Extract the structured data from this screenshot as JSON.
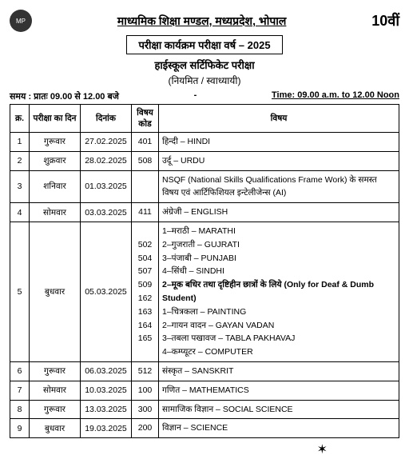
{
  "header": {
    "org": "माध्यमिक शिक्षा मण्डल, मध्यप्रदेश, भोपाल",
    "class": "10वीं",
    "program": "परीक्षा कार्यक्रम परीक्षा वर्ष – 2025",
    "exam": "हाईस्कूल सर्टिफिकेट परीक्षा",
    "mode": "(नियमित / स्वाध्यायी)",
    "time_hi": "समय : प्रातः 09.00 से 12.00 बजे",
    "time_dash": "-",
    "time_en": "Time: 09.00 a.m. to 12.00 Noon"
  },
  "columns": {
    "srno": "क्र.",
    "day": "परीक्षा का दिन",
    "date": "दिनांक",
    "code": "विषय कोड",
    "subject": "विषय"
  },
  "rows": [
    {
      "n": "1",
      "day": "गुरूवार",
      "date": "27.02.2025",
      "codes": [
        "401"
      ],
      "subjects": [
        "हिन्दी – HINDI"
      ]
    },
    {
      "n": "2",
      "day": "शुक्रवार",
      "date": "28.02.2025",
      "codes": [
        "508"
      ],
      "subjects": [
        "उर्दू – URDU"
      ]
    },
    {
      "n": "3",
      "day": "शनिवार",
      "date": "01.03.2025",
      "codes": [
        ""
      ],
      "subjects": [
        "NSQF (National Skills Qualifications Frame Work) के समस्त विषय एवं आर्टिफिशियल इन्टेलीजेन्स (AI)"
      ]
    },
    {
      "n": "4",
      "day": "सोमवार",
      "date": "03.03.2025",
      "codes": [
        "411"
      ],
      "subjects": [
        "अंग्रेजी – ENGLISH"
      ]
    },
    {
      "n": "5",
      "day": "बुधवार",
      "date": "05.03.2025",
      "codes": [
        "502",
        "504",
        "507",
        "509",
        "",
        "162",
        "163",
        "164",
        "165"
      ],
      "subjects": [
        "1–मराठी – MARATHI",
        "2–गुजराती – GUJRATI",
        "3–पंजाबी – PUNJABI",
        "4–सिंधी – SINDHI",
        "2–मूक बधिर तथा दृष्टिहीन छात्रों के लिये (Only for Deaf & Dumb Student)",
        "1–चित्रकला – PAINTING",
        "2–गायन वादन – GAYAN VADAN",
        "3–तबला पखावज – TABLA PAKHAVAJ",
        "4–कम्प्यूटर – COMPUTER"
      ]
    },
    {
      "n": "6",
      "day": "गुरूवार",
      "date": "06.03.2025",
      "codes": [
        "512"
      ],
      "subjects": [
        "संस्कृत – SANSKRIT"
      ]
    },
    {
      "n": "7",
      "day": "सोमवार",
      "date": "10.03.2025",
      "codes": [
        "100"
      ],
      "subjects": [
        "गणित – MATHEMATICS"
      ]
    },
    {
      "n": "8",
      "day": "गुरूवार",
      "date": "13.03.2025",
      "codes": [
        "300"
      ],
      "subjects": [
        "सामाजिक विज्ञान – SOCIAL SCIENCE"
      ]
    },
    {
      "n": "9",
      "day": "बुधवार",
      "date": "19.03.2025",
      "codes": [
        "200"
      ],
      "subjects": [
        "विज्ञान – SCIENCE"
      ]
    }
  ],
  "layout": {
    "col_widths": {
      "n": "24px",
      "day": "64px",
      "date": "64px",
      "code": "34px"
    }
  }
}
